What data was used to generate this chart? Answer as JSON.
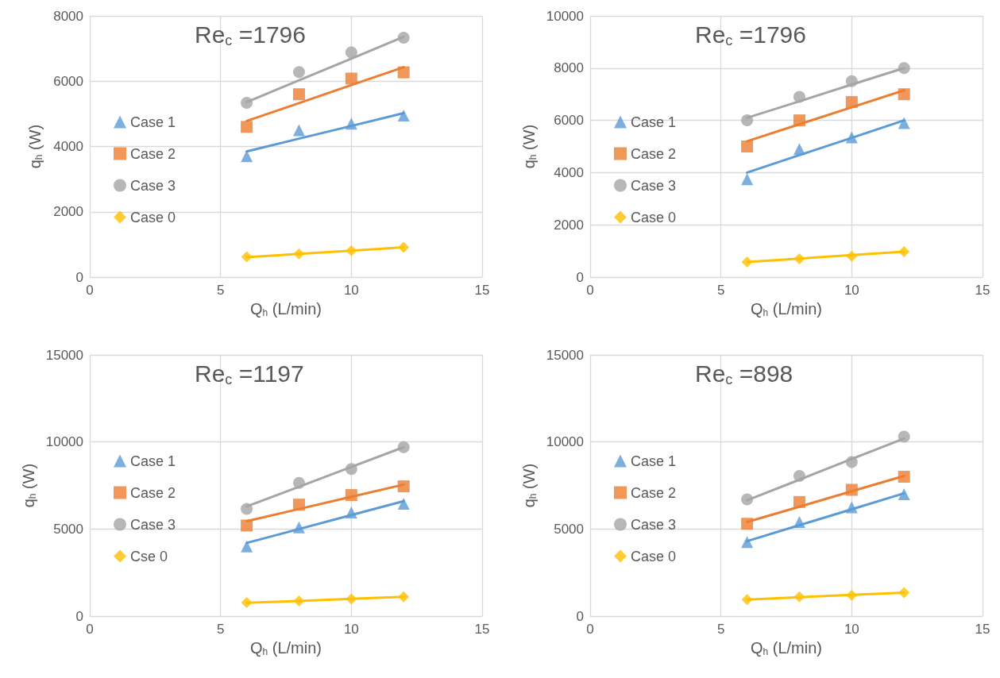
{
  "chart_data": [
    {
      "type": "scatter",
      "title": "Re$_{c}$ =1796",
      "xlabel": "Q$_{h}$ (L/min)",
      "ylabel": "q$_{h}$ (W)",
      "xlim": [
        0,
        15
      ],
      "xticks": [
        0,
        5,
        10,
        15
      ],
      "ylim": [
        0,
        8000
      ],
      "yticks": [
        0,
        2000,
        4000,
        6000,
        8000
      ],
      "grid": true,
      "legend": "left",
      "x": [
        6,
        8,
        10,
        12
      ],
      "series": [
        {
          "name": "Case 1",
          "color": "#5b9bd5",
          "marker": "triangle",
          "values": [
            3700,
            4500,
            4700,
            4950
          ]
        },
        {
          "name": "Case 2",
          "color": "#ed7d31",
          "marker": "square",
          "values": [
            4600,
            5600,
            6080,
            6270
          ]
        },
        {
          "name": "Case 3",
          "color": "#a5a5a5",
          "marker": "circle",
          "values": [
            5340,
            6280,
            6880,
            7330
          ]
        },
        {
          "name": "Case 0",
          "color": "#ffc000",
          "marker": "diamond",
          "values": [
            620,
            710,
            810,
            910
          ]
        },
        {
          "type": "line",
          "color": "#5b9bd5",
          "marker": "none",
          "values": [
            3850,
            4240,
            4630,
            5020
          ]
        },
        {
          "type": "line",
          "color": "#ed7d31",
          "marker": "none",
          "values": [
            4780,
            5330,
            5880,
            6430
          ]
        },
        {
          "type": "line",
          "color": "#a5a5a5",
          "marker": "none",
          "values": [
            5360,
            6030,
            6690,
            7360
          ]
        },
        {
          "type": "line",
          "color": "#ffc000",
          "marker": "none",
          "values": [
            610,
            710,
            810,
            910
          ]
        }
      ]
    },
    {
      "type": "scatter",
      "title": "Re$_{c}$ =1796",
      "xlabel": "Q$_{h}$ (L/min)",
      "ylabel": "q$_{h}$ (W)",
      "xlim": [
        0,
        15
      ],
      "xticks": [
        0,
        5,
        10,
        15
      ],
      "ylim": [
        0,
        10000
      ],
      "yticks": [
        0,
        2000,
        4000,
        6000,
        8000,
        10000
      ],
      "grid": true,
      "legend": "left",
      "x": [
        6,
        8,
        10,
        12
      ],
      "series": [
        {
          "name": "Case 1",
          "color": "#5b9bd5",
          "marker": "triangle",
          "values": [
            3750,
            4900,
            5350,
            5900
          ]
        },
        {
          "name": "Case 2",
          "color": "#ed7d31",
          "marker": "square",
          "values": [
            5000,
            6000,
            6700,
            7000
          ]
        },
        {
          "name": "Case 3",
          "color": "#a5a5a5",
          "marker": "circle",
          "values": [
            6000,
            6900,
            7500,
            8000
          ]
        },
        {
          "name": "Case 0",
          "color": "#ffc000",
          "marker": "diamond",
          "values": [
            580,
            700,
            800,
            970
          ]
        },
        {
          "type": "line",
          "color": "#5b9bd5",
          "marker": "none",
          "values": [
            4000,
            4670,
            5330,
            6000
          ]
        },
        {
          "type": "line",
          "color": "#ed7d31",
          "marker": "none",
          "values": [
            5200,
            5850,
            6500,
            7150
          ]
        },
        {
          "type": "line",
          "color": "#a5a5a5",
          "marker": "none",
          "values": [
            6100,
            6730,
            7370,
            8000
          ]
        },
        {
          "type": "line",
          "color": "#ffc000",
          "marker": "none",
          "values": [
            580,
            710,
            840,
            970
          ]
        }
      ]
    },
    {
      "type": "scatter",
      "title": "Re$_{c}$ =1197",
      "xlabel": "Q$_{h}$ (L/min)",
      "ylabel": "q$_{h}$ (W)",
      "xlim": [
        0,
        15
      ],
      "xticks": [
        0,
        5,
        10,
        15
      ],
      "ylim": [
        0,
        15000
      ],
      "yticks": [
        0,
        5000,
        10000,
        15000
      ],
      "grid": true,
      "legend": "left",
      "x": [
        6,
        8,
        10,
        12
      ],
      "series": [
        {
          "name": "Case 1",
          "color": "#5b9bd5",
          "marker": "triangle",
          "values": [
            4000,
            5100,
            5950,
            6450
          ]
        },
        {
          "name": "Case 2",
          "color": "#ed7d31",
          "marker": "square",
          "values": [
            5200,
            6400,
            6950,
            7450
          ]
        },
        {
          "name": "Case 3",
          "color": "#a5a5a5",
          "marker": "circle",
          "values": [
            6150,
            7650,
            8450,
            9700
          ]
        },
        {
          "name": "Cse 0",
          "color": "#ffc000",
          "marker": "diamond",
          "values": [
            780,
            870,
            980,
            1100
          ]
        },
        {
          "type": "line",
          "color": "#5b9bd5",
          "marker": "none",
          "values": [
            4200,
            5000,
            5800,
            6600
          ]
        },
        {
          "type": "line",
          "color": "#ed7d31",
          "marker": "none",
          "values": [
            5450,
            6150,
            6850,
            7550
          ]
        },
        {
          "type": "line",
          "color": "#a5a5a5",
          "marker": "none",
          "values": [
            6300,
            7430,
            8570,
            9700
          ]
        },
        {
          "type": "line",
          "color": "#ffc000",
          "marker": "none",
          "values": [
            760,
            870,
            990,
            1100
          ]
        }
      ]
    },
    {
      "type": "scatter",
      "title": "Re$_{c}$ =898",
      "xlabel": "Q$_{h}$ (L/min)",
      "ylabel": "q$_{h}$ (W)",
      "xlim": [
        0,
        15
      ],
      "xticks": [
        0,
        5,
        10,
        15
      ],
      "ylim": [
        0,
        15000
      ],
      "yticks": [
        0,
        5000,
        10000,
        15000
      ],
      "grid": true,
      "legend": "left",
      "x": [
        6,
        8,
        10,
        12
      ],
      "series": [
        {
          "name": "Case 1",
          "color": "#5b9bd5",
          "marker": "triangle",
          "values": [
            4250,
            5400,
            6250,
            7000
          ]
        },
        {
          "name": "Case 2",
          "color": "#ed7d31",
          "marker": "square",
          "values": [
            5300,
            6550,
            7250,
            8000
          ]
        },
        {
          "name": "Case 3",
          "color": "#a5a5a5",
          "marker": "circle",
          "values": [
            6700,
            8050,
            8850,
            10300
          ]
        },
        {
          "name": "Case 0",
          "color": "#ffc000",
          "marker": "diamond",
          "values": [
            950,
            1100,
            1200,
            1350
          ]
        },
        {
          "type": "line",
          "color": "#5b9bd5",
          "marker": "none",
          "values": [
            4300,
            5220,
            6130,
            7050
          ]
        },
        {
          "type": "line",
          "color": "#ed7d31",
          "marker": "none",
          "values": [
            5400,
            6280,
            7170,
            8050
          ]
        },
        {
          "type": "line",
          "color": "#a5a5a5",
          "marker": "none",
          "values": [
            6650,
            7830,
            9020,
            10200
          ]
        },
        {
          "type": "line",
          "color": "#ffc000",
          "marker": "none",
          "values": [
            950,
            1080,
            1220,
            1350
          ]
        }
      ]
    }
  ]
}
